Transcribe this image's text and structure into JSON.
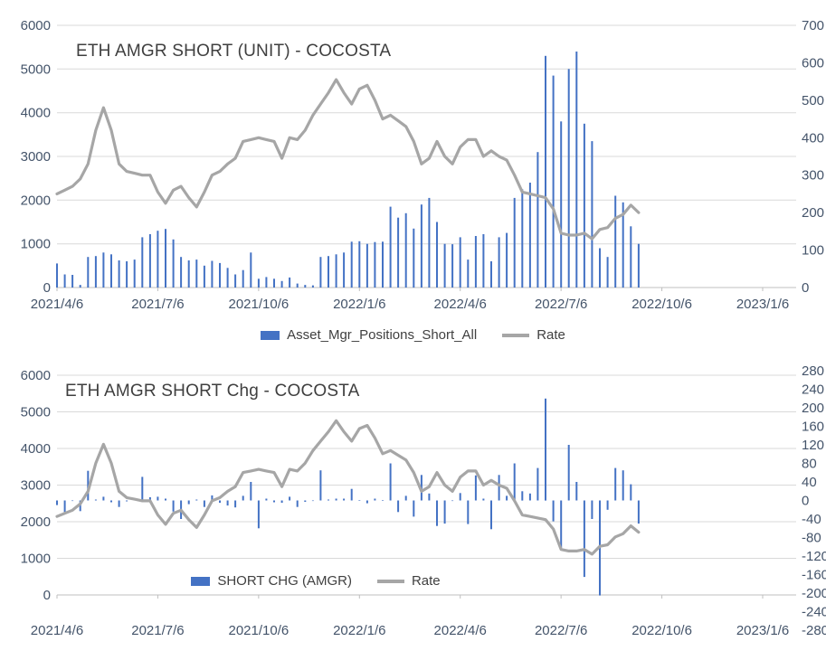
{
  "colors": {
    "bar": "#4472C4",
    "line": "#A6A6A6",
    "grid": "#D9D9D9",
    "axis_line": "#BFBFBF",
    "axis_text": "#44546A",
    "title_text": "#3F3F3F",
    "legend_text": "#404040"
  },
  "chart_data": [
    {
      "type": "bar",
      "title": "ETH AMGR SHORT (UNIT) - COCOSTA",
      "x_start": "2021/4/6",
      "x_interval": "weekly",
      "x_tick_labels": [
        "2021/4/6",
        "2021/7/6",
        "2021/10/6",
        "2022/1/6",
        "2022/4/6",
        "2022/7/6",
        "2022/10/6",
        "2023/1/6"
      ],
      "left_axis": {
        "min": 0,
        "max": 6000,
        "tick_values": [
          0,
          1000,
          2000,
          3000,
          4000,
          5000,
          6000
        ]
      },
      "right_axis": {
        "min": 0,
        "max": 700,
        "tick_values": [
          0,
          100,
          200,
          300,
          400,
          500,
          600,
          700
        ]
      },
      "grid": "horizontal",
      "legend_position": "bottom",
      "legend": [
        {
          "label": "Asset_Mgr_Positions_Short_All",
          "swatch": "bar"
        },
        {
          "label": "Rate",
          "swatch": "line"
        }
      ],
      "series": [
        {
          "name": "Asset_Mgr_Positions_Short_All",
          "type": "bar",
          "axis": "left",
          "color": "#4472C4",
          "values": [
            550,
            300,
            290,
            60,
            700,
            720,
            800,
            760,
            620,
            600,
            640,
            1150,
            1220,
            1300,
            1340,
            1100,
            700,
            620,
            640,
            500,
            610,
            560,
            450,
            300,
            400,
            800,
            200,
            240,
            200,
            150,
            230,
            90,
            60,
            50,
            700,
            720,
            760,
            800,
            1050,
            1060,
            1000,
            1040,
            1050,
            1850,
            1600,
            1700,
            1350,
            1900,
            2050,
            1500,
            1000,
            990,
            1150,
            640,
            1180,
            1220,
            600,
            1150,
            1250,
            2050,
            2250,
            2400,
            3100,
            5300,
            4850,
            3800,
            5000,
            5400,
            3750,
            3350,
            900,
            700,
            2100,
            1950,
            1400,
            1000
          ]
        },
        {
          "name": "Rate",
          "type": "line",
          "axis": "right",
          "color": "#A6A6A6",
          "values": [
            250,
            260,
            270,
            290,
            330,
            420,
            480,
            420,
            330,
            310,
            305,
            300,
            300,
            255,
            225,
            260,
            270,
            240,
            215,
            255,
            300,
            310,
            330,
            345,
            390,
            395,
            400,
            395,
            390,
            345,
            400,
            395,
            420,
            460,
            490,
            520,
            555,
            520,
            490,
            530,
            540,
            500,
            450,
            460,
            445,
            430,
            390,
            330,
            345,
            390,
            350,
            330,
            375,
            395,
            395,
            350,
            365,
            350,
            340,
            300,
            255,
            250,
            245,
            240,
            210,
            145,
            140,
            140,
            145,
            130,
            155,
            160,
            185,
            195,
            220,
            200
          ]
        }
      ]
    },
    {
      "type": "bar",
      "title": "ETH AMGR SHORT Chg - COCOSTA",
      "x_start": "2021/4/6",
      "x_interval": "weekly",
      "x_tick_labels": [
        "2021/4/6",
        "2021/7/6",
        "2021/10/6",
        "2022/1/6",
        "2022/4/6",
        "2022/7/6",
        "2022/10/6",
        "2023/1/6"
      ],
      "left_axis": {
        "min": 0,
        "max": 6000,
        "tick_values": [
          0,
          1000,
          2000,
          3000,
          4000,
          5000,
          6000
        ]
      },
      "right_axis": {
        "min": -280,
        "max": 280,
        "tick_values": [
          280,
          240,
          200,
          160,
          120,
          80,
          40,
          0,
          -40,
          -80,
          -120,
          -160,
          -200,
          -240,
          -280
        ]
      },
      "hidden_axis": {
        "min": 0,
        "max": 700
      },
      "grid": "horizontal",
      "legend_position": "inside-bottom",
      "legend": [
        {
          "label": "SHORT CHG (AMGR)",
          "swatch": "bar"
        },
        {
          "label": "Rate",
          "swatch": "line"
        }
      ],
      "series": [
        {
          "name": "SHORT CHG (AMGR)",
          "type": "bar",
          "axis": "right",
          "color": "#4472C4",
          "values": [
            -10,
            -25,
            -1,
            -23,
            64,
            2,
            8,
            -4,
            -14,
            -2,
            4,
            51,
            7,
            8,
            4,
            -24,
            -40,
            -8,
            2,
            -14,
            11,
            -5,
            -11,
            -15,
            10,
            40,
            -60,
            4,
            -4,
            -5,
            8,
            -14,
            -3,
            -1,
            65,
            2,
            4,
            4,
            25,
            1,
            -6,
            4,
            1,
            80,
            -25,
            10,
            -35,
            55,
            15,
            -55,
            -50,
            -1,
            16,
            -51,
            54,
            4,
            -62,
            55,
            10,
            80,
            20,
            15,
            70,
            220,
            -45,
            -105,
            120,
            40,
            -165,
            -40,
            -205,
            -20,
            70,
            65,
            35,
            -50
          ]
        },
        {
          "name": "Rate",
          "type": "line",
          "axis": "hidden",
          "color": "#A6A6A6",
          "values": [
            250,
            260,
            270,
            290,
            330,
            420,
            480,
            420,
            330,
            310,
            305,
            300,
            300,
            255,
            225,
            260,
            270,
            240,
            215,
            255,
            300,
            310,
            330,
            345,
            390,
            395,
            400,
            395,
            390,
            345,
            400,
            395,
            420,
            460,
            490,
            520,
            555,
            520,
            490,
            530,
            540,
            500,
            450,
            460,
            445,
            430,
            390,
            330,
            345,
            390,
            350,
            330,
            375,
            395,
            395,
            350,
            365,
            350,
            340,
            300,
            255,
            250,
            245,
            240,
            210,
            145,
            140,
            140,
            145,
            130,
            155,
            160,
            185,
            195,
            220,
            200
          ]
        }
      ]
    }
  ]
}
